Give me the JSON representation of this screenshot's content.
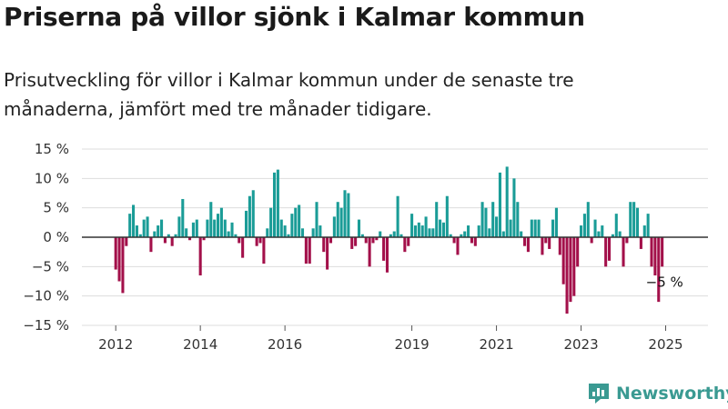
{
  "title": "Priserna på villor sjönk i Kalmar kommun",
  "subtitle": "Prisutveckling för villor i Kalmar kommun under de senaste tre månaderna, jämfört med tre månader tidigare.",
  "brand": {
    "name": "Newsworthy"
  },
  "colors": {
    "positive": "#1a9c97",
    "negative": "#a3104a",
    "grid": "#dddddd",
    "zero": "#333333"
  },
  "chart_data": {
    "type": "bar",
    "title": "Priserna på villor sjönk i Kalmar kommun",
    "xlabel": "",
    "ylabel": "",
    "ylim": [
      -15,
      15
    ],
    "xlim": [
      2011.2,
      2026.0
    ],
    "yticks": [
      {
        "value": 15,
        "label": "15 %"
      },
      {
        "value": 10,
        "label": "10 %"
      },
      {
        "value": 5,
        "label": "5 %"
      },
      {
        "value": 0,
        "label": "0 %"
      },
      {
        "value": -5,
        "label": "−5 %"
      },
      {
        "value": -10,
        "label": "−10 %"
      },
      {
        "value": -15,
        "label": "−15 %"
      }
    ],
    "xticks": [
      {
        "value": 2012,
        "label": "2012"
      },
      {
        "value": 2014,
        "label": "2014"
      },
      {
        "value": 2016,
        "label": "2016"
      },
      {
        "value": 2019,
        "label": "2019"
      },
      {
        "value": 2021,
        "label": "2021"
      },
      {
        "value": 2023,
        "label": "2023"
      },
      {
        "value": 2025,
        "label": "2025"
      }
    ],
    "start": "2012-01",
    "grid": true,
    "annotation": {
      "text": "−5 %"
    },
    "values": [
      -5.5,
      -7.5,
      -9.5,
      -1.5,
      4.0,
      5.5,
      2.0,
      0.5,
      3.0,
      3.5,
      -2.5,
      1.0,
      2.0,
      3.0,
      -1.0,
      0.5,
      -1.5,
      0.5,
      3.5,
      6.5,
      1.5,
      -0.5,
      2.5,
      3.0,
      -6.5,
      -0.5,
      3.0,
      6.0,
      3.0,
      4.0,
      5.0,
      3.0,
      1.0,
      2.5,
      0.5,
      -1.0,
      -3.5,
      4.5,
      7.0,
      8.0,
      -1.5,
      -1.0,
      -4.5,
      1.5,
      5.0,
      11.0,
      11.5,
      3.0,
      2.0,
      0.5,
      4.0,
      5.0,
      5.5,
      1.5,
      -4.5,
      -4.5,
      1.5,
      6.0,
      2.0,
      -2.5,
      -5.5,
      -1.0,
      3.5,
      6.0,
      5.0,
      8.0,
      7.5,
      -2.0,
      -1.5,
      3.0,
      0.5,
      -1.0,
      -5.0,
      -1.0,
      -0.5,
      1.0,
      -4.0,
      -6.0,
      0.5,
      1.0,
      7.0,
      0.5,
      -2.5,
      -1.5,
      4.0,
      2.0,
      2.5,
      2.0,
      3.5,
      1.5,
      1.5,
      6.0,
      3.0,
      2.5,
      7.0,
      0.5,
      -1.0,
      -3.0,
      0.5,
      1.0,
      2.0,
      -1.0,
      -1.5,
      2.0,
      6.0,
      5.0,
      1.5,
      6.0,
      3.5,
      11.0,
      1.0,
      12.0,
      3.0,
      10.0,
      6.0,
      1.0,
      -1.5,
      -2.5,
      3.0,
      3.0,
      3.0,
      -3.0,
      -1.0,
      -2.0,
      3.0,
      5.0,
      -3.0,
      -8.0,
      -13.0,
      -11.0,
      -10.0,
      -5.0,
      2.0,
      4.0,
      6.0,
      -1.0,
      3.0,
      1.0,
      2.0,
      -5.0,
      -4.0,
      0.5,
      4.0,
      1.0,
      -5.0,
      -1.0,
      6.0,
      6.0,
      5.0,
      -2.0,
      2.0,
      4.0,
      -5.0,
      -6.5,
      -11.0,
      -5.0
    ]
  }
}
